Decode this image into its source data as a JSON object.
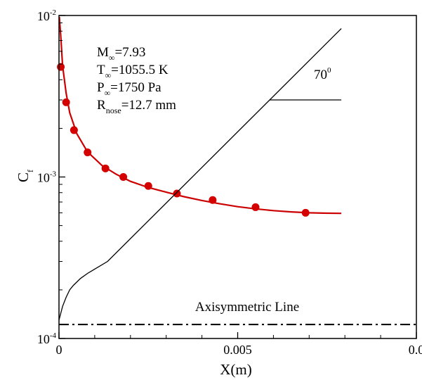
{
  "chart_data": {
    "type": "line",
    "xlabel": "X(m)",
    "ylabel": {
      "main": "C",
      "sub": "f"
    },
    "xlim": [
      0,
      0.01
    ],
    "ylim": [
      0.0001,
      0.01
    ],
    "yscale": "log",
    "grid": false,
    "x_ticks": [
      {
        "value": 0,
        "label": "0"
      },
      {
        "value": 0.005,
        "label": "0.005"
      },
      {
        "value": 0.01,
        "label": "0.0"
      }
    ],
    "y_ticks": [
      {
        "value": 0.0001,
        "base": "10",
        "exp": "-4"
      },
      {
        "value": 0.001,
        "base": "10",
        "exp": "-3"
      },
      {
        "value": 0.01,
        "base": "10",
        "exp": "-2"
      }
    ],
    "conditions": [
      {
        "main": "M",
        "sub": "∞",
        "rest": "=7.93"
      },
      {
        "main": "T",
        "sub": "∞",
        "rest": "=1055.5 K"
      },
      {
        "main": "P",
        "sub": "∞",
        "rest": "=1750 Pa"
      },
      {
        "main": "R",
        "sub": "nose",
        "rest": "=12.7 mm"
      }
    ],
    "angle_annotation": {
      "value": "70",
      "sup": "0"
    },
    "axisym_label": "Axisymmetric Line",
    "axisym_level": 0.000122,
    "angle_ref_level": 0.003,
    "series": [
      {
        "kind": "curve",
        "color": "#cc0000",
        "x": [
          1e-05,
          5e-05,
          0.0001,
          0.0002,
          0.0003,
          0.0005,
          0.0008,
          0.0012,
          0.0016,
          0.002,
          0.0025,
          0.003,
          0.0035,
          0.004,
          0.0045,
          0.005,
          0.0055,
          0.006,
          0.0065,
          0.007,
          0.0074,
          0.0079
        ],
        "y": [
          0.0098,
          0.0075,
          0.0049,
          0.0033,
          0.0025,
          0.00185,
          0.00143,
          0.00118,
          0.00104,
          0.00094,
          0.00086,
          0.000805,
          0.000755,
          0.000715,
          0.000682,
          0.000655,
          0.000635,
          0.000619,
          0.000608,
          0.0006,
          0.000597,
          0.000595
        ]
      },
      {
        "kind": "markers",
        "color": "#d40000",
        "x": [
          5e-05,
          0.0002,
          0.00042,
          0.0008,
          0.0013,
          0.0018,
          0.0025,
          0.0033,
          0.0043,
          0.0055,
          0.0069
        ],
        "y": [
          0.0048,
          0.0029,
          0.00195,
          0.00142,
          0.00113,
          0.001,
          0.00088,
          0.00079,
          0.00072,
          0.00065,
          0.0006
        ]
      },
      {
        "kind": "geometry",
        "color": "#000000",
        "x": [
          0.0,
          0.0001,
          0.0002,
          0.0003,
          0.0004,
          0.0006,
          0.0008,
          0.00136,
          0.0079
        ],
        "y": [
          0.00013,
          0.000158,
          0.00018,
          0.0002,
          0.000213,
          0.000235,
          0.000253,
          0.0003,
          0.0083
        ]
      }
    ]
  }
}
